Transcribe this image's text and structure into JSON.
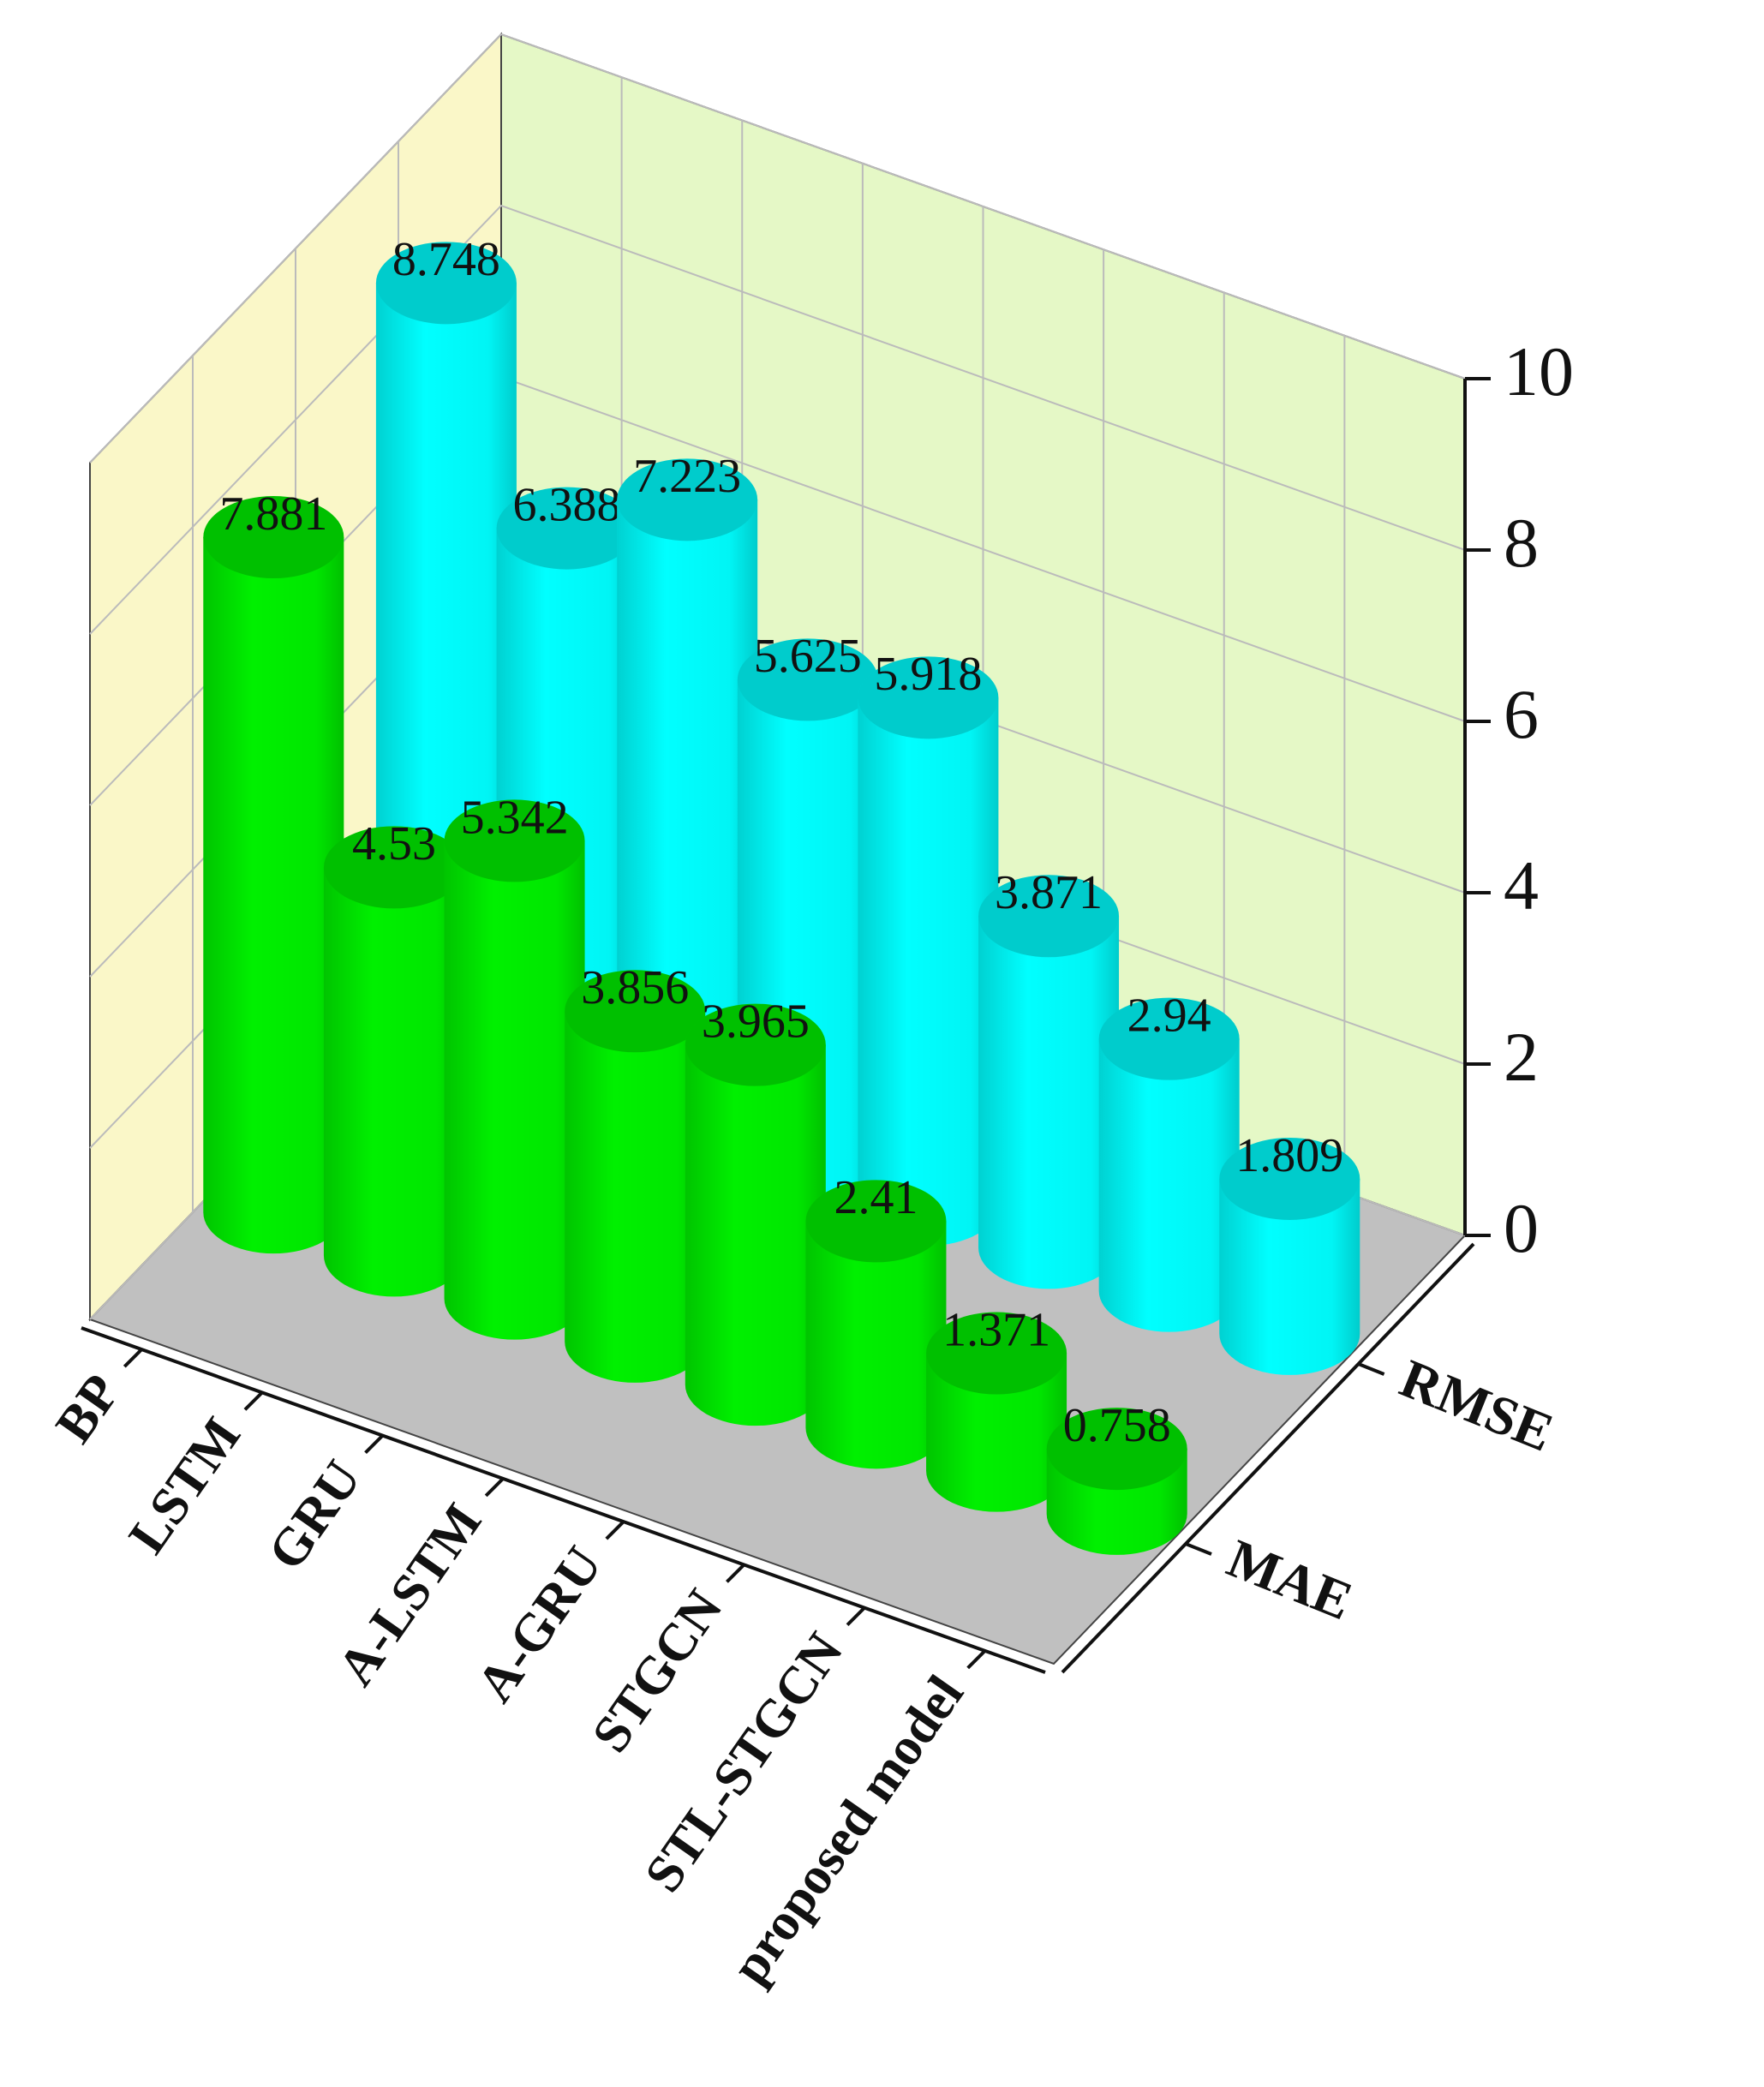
{
  "chart_data": {
    "type": "bar3d",
    "categories": [
      "BP",
      "LSTM",
      "GRU",
      "A-LSTM",
      "A-GRU",
      "STGCN",
      "STL-STGCN",
      "proposed model"
    ],
    "series": [
      {
        "name": "MAE",
        "color": "#00f000",
        "values": [
          7.881,
          4.53,
          5.342,
          3.856,
          3.965,
          2.41,
          1.371,
          0.758
        ]
      },
      {
        "name": "RMSE",
        "color": "#00ffff",
        "values": [
          8.748,
          6.388,
          7.223,
          5.625,
          5.918,
          3.871,
          2.94,
          1.809
        ]
      }
    ],
    "ylim": [
      0,
      10
    ],
    "yticks": [
      0,
      2,
      4,
      6,
      8,
      10
    ],
    "grid": true
  }
}
